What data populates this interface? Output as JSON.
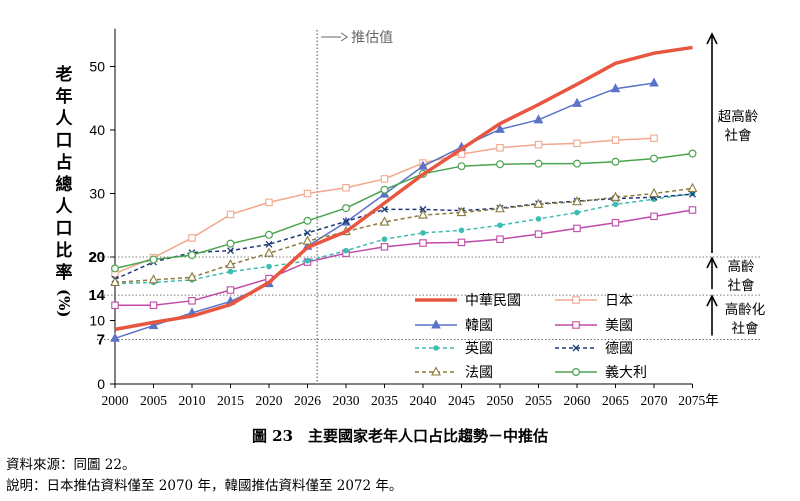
{
  "chart_data": {
    "type": "line",
    "y_axis_label": "老年人口占總人口比率(%)",
    "annotation_projection": "推估值",
    "projection_start": 2027,
    "x": [
      2000,
      2005,
      2010,
      2015,
      2020,
      2026,
      2030,
      2035,
      2040,
      2045,
      2050,
      2055,
      2060,
      2065,
      2070,
      2075
    ],
    "x_tick_labels": [
      "2000",
      "2005",
      "2010",
      "2015",
      "2020",
      "2026",
      "2030",
      "2035",
      "2040",
      "2045",
      "2050",
      "2055",
      "2060",
      "2065",
      "2070",
      "2075年"
    ],
    "ylim": [
      0,
      55
    ],
    "y_ticks": [
      0,
      10,
      20,
      30,
      40,
      50
    ],
    "y_reference_lines": [
      7,
      14,
      20
    ],
    "grid": false,
    "legend_position": "bottom-right",
    "series": [
      {
        "name": "中華民國",
        "color": "#e8563f",
        "style": "solid-thick",
        "marker": "none",
        "values": [
          8.6,
          9.7,
          10.7,
          12.5,
          16.0,
          21.5,
          24.0,
          28.5,
          33.0,
          37.0,
          41.0,
          44.0,
          47.2,
          50.5,
          52.1,
          53.0
        ]
      },
      {
        "name": "日本",
        "color": "#f2a88f",
        "style": "solid",
        "marker": "square",
        "values": [
          17.4,
          19.9,
          23.0,
          26.7,
          28.6,
          30.0,
          30.9,
          32.3,
          34.8,
          36.2,
          37.2,
          37.7,
          37.9,
          38.4,
          38.7,
          null
        ]
      },
      {
        "name": "韓國",
        "color": "#5b73c7",
        "style": "solid",
        "marker": "triangle",
        "values": [
          7.2,
          9.2,
          11.2,
          13.0,
          15.8,
          21.7,
          25.5,
          29.9,
          34.3,
          37.3,
          40.1,
          41.6,
          44.2,
          46.5,
          47.4,
          null
        ]
      },
      {
        "name": "美國",
        "color": "#c04aa8",
        "style": "solid",
        "marker": "square-open",
        "values": [
          12.4,
          12.4,
          13.1,
          14.8,
          16.6,
          19.2,
          20.6,
          21.6,
          22.2,
          22.3,
          22.8,
          23.6,
          24.5,
          25.4,
          26.4,
          27.4
        ]
      },
      {
        "name": "英國",
        "color": "#3dbdb1",
        "style": "dashed",
        "marker": "circle",
        "values": [
          15.8,
          16.0,
          16.4,
          17.7,
          18.5,
          19.4,
          21.0,
          22.8,
          23.8,
          24.2,
          25.0,
          26.0,
          27.0,
          28.3,
          29.1,
          30.0
        ]
      },
      {
        "name": "德國",
        "color": "#1f3a78",
        "style": "dashed",
        "marker": "x",
        "values": [
          16.5,
          19.2,
          20.7,
          21.0,
          22.0,
          23.8,
          25.6,
          27.5,
          27.5,
          27.3,
          27.7,
          28.4,
          28.8,
          29.2,
          29.4,
          29.9
        ]
      },
      {
        "name": "法國",
        "color": "#8b7a3a",
        "style": "dashed",
        "marker": "triangle-open",
        "values": [
          16.0,
          16.4,
          16.8,
          18.8,
          20.6,
          22.5,
          24.0,
          25.5,
          26.6,
          27.0,
          27.6,
          28.3,
          28.7,
          29.4,
          30.0,
          30.8
        ]
      },
      {
        "name": "義大利",
        "color": "#4aa34e",
        "style": "solid",
        "marker": "circle-open",
        "values": [
          18.2,
          19.6,
          20.3,
          22.1,
          23.5,
          25.7,
          27.7,
          30.6,
          33.1,
          34.3,
          34.6,
          34.7,
          34.7,
          35.0,
          35.5,
          36.3
        ]
      }
    ],
    "regions": [
      {
        "label": "超高齡社會",
        "lines": [
          "超高齡",
          "社會"
        ]
      },
      {
        "label": "高齡社會",
        "lines": [
          "高齡",
          "社會"
        ]
      },
      {
        "label": "高齡化社會",
        "lines": [
          "高齡化",
          "社會"
        ]
      }
    ]
  },
  "caption": "圖 23　主要國家老年人口占比趨勢－中推估",
  "source_note": "資料來源：同圖 22。",
  "note": "說明：日本推估資料僅至 2070 年，韓國推估資料僅至 2072 年。"
}
